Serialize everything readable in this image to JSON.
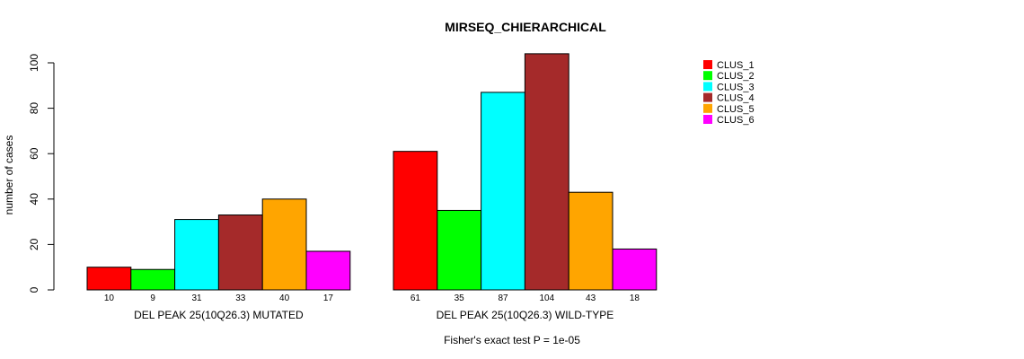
{
  "chart_data": {
    "type": "bar",
    "title": "MIRSEQ_CHIERARCHICAL",
    "ylabel": "number of cases",
    "ylim": [
      0,
      100
    ],
    "yticks": [
      "0",
      "20",
      "40",
      "60",
      "80",
      "100"
    ],
    "groups": [
      "DEL PEAK 25(10Q26.3) MUTATED",
      "DEL PEAK 25(10Q26.3) WILD-TYPE"
    ],
    "series": [
      {
        "name": "CLUS_1",
        "color": "#ff0000",
        "values": [
          10,
          61
        ]
      },
      {
        "name": "CLUS_2",
        "color": "#00ff00",
        "values": [
          9,
          35
        ]
      },
      {
        "name": "CLUS_3",
        "color": "#00ffff",
        "values": [
          31,
          87
        ]
      },
      {
        "name": "CLUS_4",
        "color": "#a52a2a",
        "values": [
          33,
          104
        ]
      },
      {
        "name": "CLUS_5",
        "color": "#ffa500",
        "values": [
          40,
          43
        ]
      },
      {
        "name": "CLUS_6",
        "color": "#ff00ff",
        "values": [
          17,
          18
        ]
      }
    ],
    "bar_labels": [
      [
        "10",
        "9",
        "31",
        "33",
        "40",
        "17"
      ],
      [
        "61",
        "35",
        "87",
        "104",
        "43",
        "18"
      ]
    ],
    "footnote": "Fisher's exact test P = 1e-05",
    "legend_position": "top-right",
    "grid": false
  }
}
